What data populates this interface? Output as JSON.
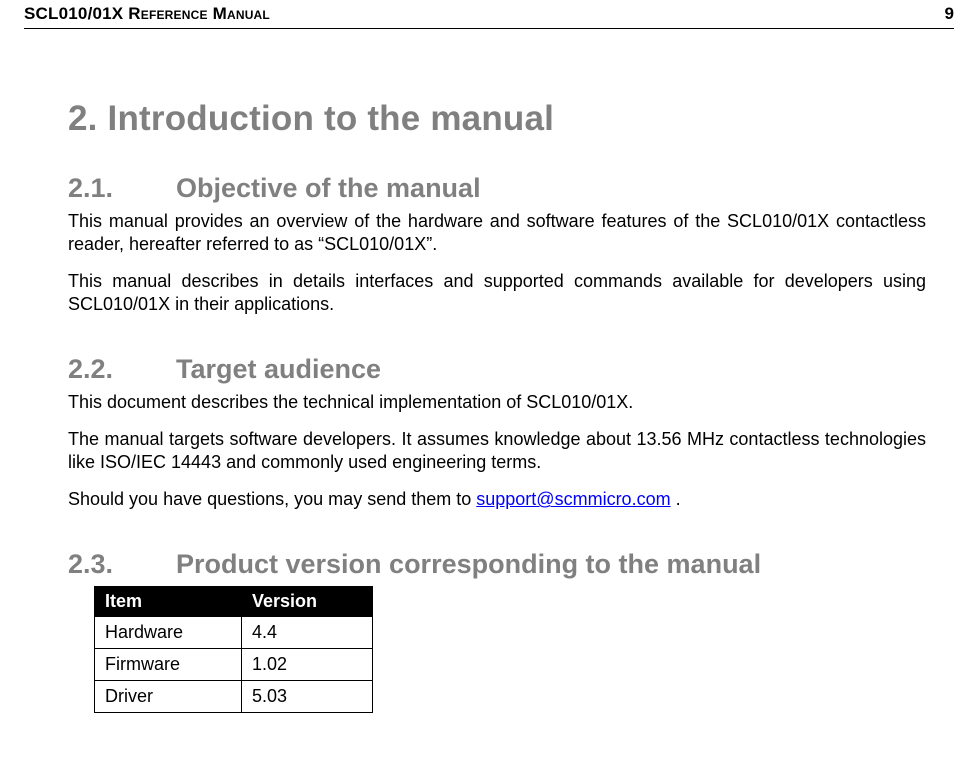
{
  "header": {
    "title": "SCL010/01X Reference Manual",
    "page_number": "9"
  },
  "h1": "2. Introduction to the manual",
  "sections": {
    "s21": {
      "num": "2.1.",
      "title": "Objective of the manual",
      "p1": "This manual provides an overview of the hardware and software features of the SCL010/01X contactless reader, hereafter referred to as “SCL010/01X”.",
      "p2": "This manual describes in details interfaces and supported commands available for developers using SCL010/01X in their applications."
    },
    "s22": {
      "num": "2.2.",
      "title": "Target audience",
      "p1": "This document describes the technical implementation of SCL010/01X.",
      "p2": "The manual targets software developers. It assumes knowledge about 13.56 MHz contactless technologies like ISO/IEC 14443 and commonly used engineering terms.",
      "p3_prefix": "Should you have questions, you may send them to ",
      "p3_link_text": "support@scmmicro.com",
      "p3_suffix": " ."
    },
    "s23": {
      "num": "2.3.",
      "title": "Product version corresponding to the manual",
      "table": {
        "columns": [
          "Item",
          "Version"
        ],
        "rows": [
          [
            "Hardware",
            "4.4"
          ],
          [
            "Firmware",
            "1.02"
          ],
          [
            "Driver",
            "5.03"
          ]
        ]
      }
    }
  }
}
